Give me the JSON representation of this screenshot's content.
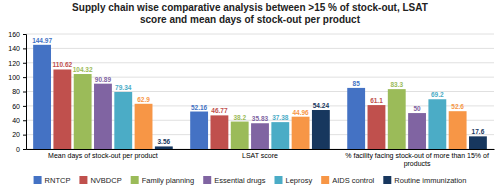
{
  "chart_data": {
    "type": "bar",
    "title": "Supply chain wise comparative analysis between >15 % of stock-out, LSAT\nscore and mean days of stock-out per product",
    "categories": [
      "Mean days of stock-out per product",
      "LSAT score",
      "% facility facing stock-out of more than 15% of\nproducts"
    ],
    "series": [
      {
        "name": "RNTCP",
        "color": "#4472C4",
        "values": [
          144.97,
          52.16,
          85
        ]
      },
      {
        "name": "NVBDCP",
        "color": "#C0504D",
        "values": [
          110.62,
          46.77,
          61.1
        ]
      },
      {
        "name": "Family planning",
        "color": "#9BBB59",
        "values": [
          104.32,
          38.2,
          83.3
        ]
      },
      {
        "name": "Essential drugs",
        "color": "#8064A2",
        "values": [
          90.89,
          35.83,
          50
        ]
      },
      {
        "name": "Leprosy",
        "color": "#4BACC6",
        "values": [
          79.34,
          37.38,
          69.2
        ]
      },
      {
        "name": "AIDS control",
        "color": "#F79646",
        "values": [
          62.9,
          44.96,
          52.6
        ]
      },
      {
        "name": "Routine immunization",
        "color": "#17375E",
        "values": [
          3.56,
          54.24,
          17.6
        ]
      }
    ],
    "ylim": [
      0,
      160
    ],
    "yticks": [
      0,
      20,
      40,
      60,
      80,
      100,
      120,
      140,
      160
    ],
    "grid": true,
    "legend": "bottom",
    "data_labels": true
  }
}
